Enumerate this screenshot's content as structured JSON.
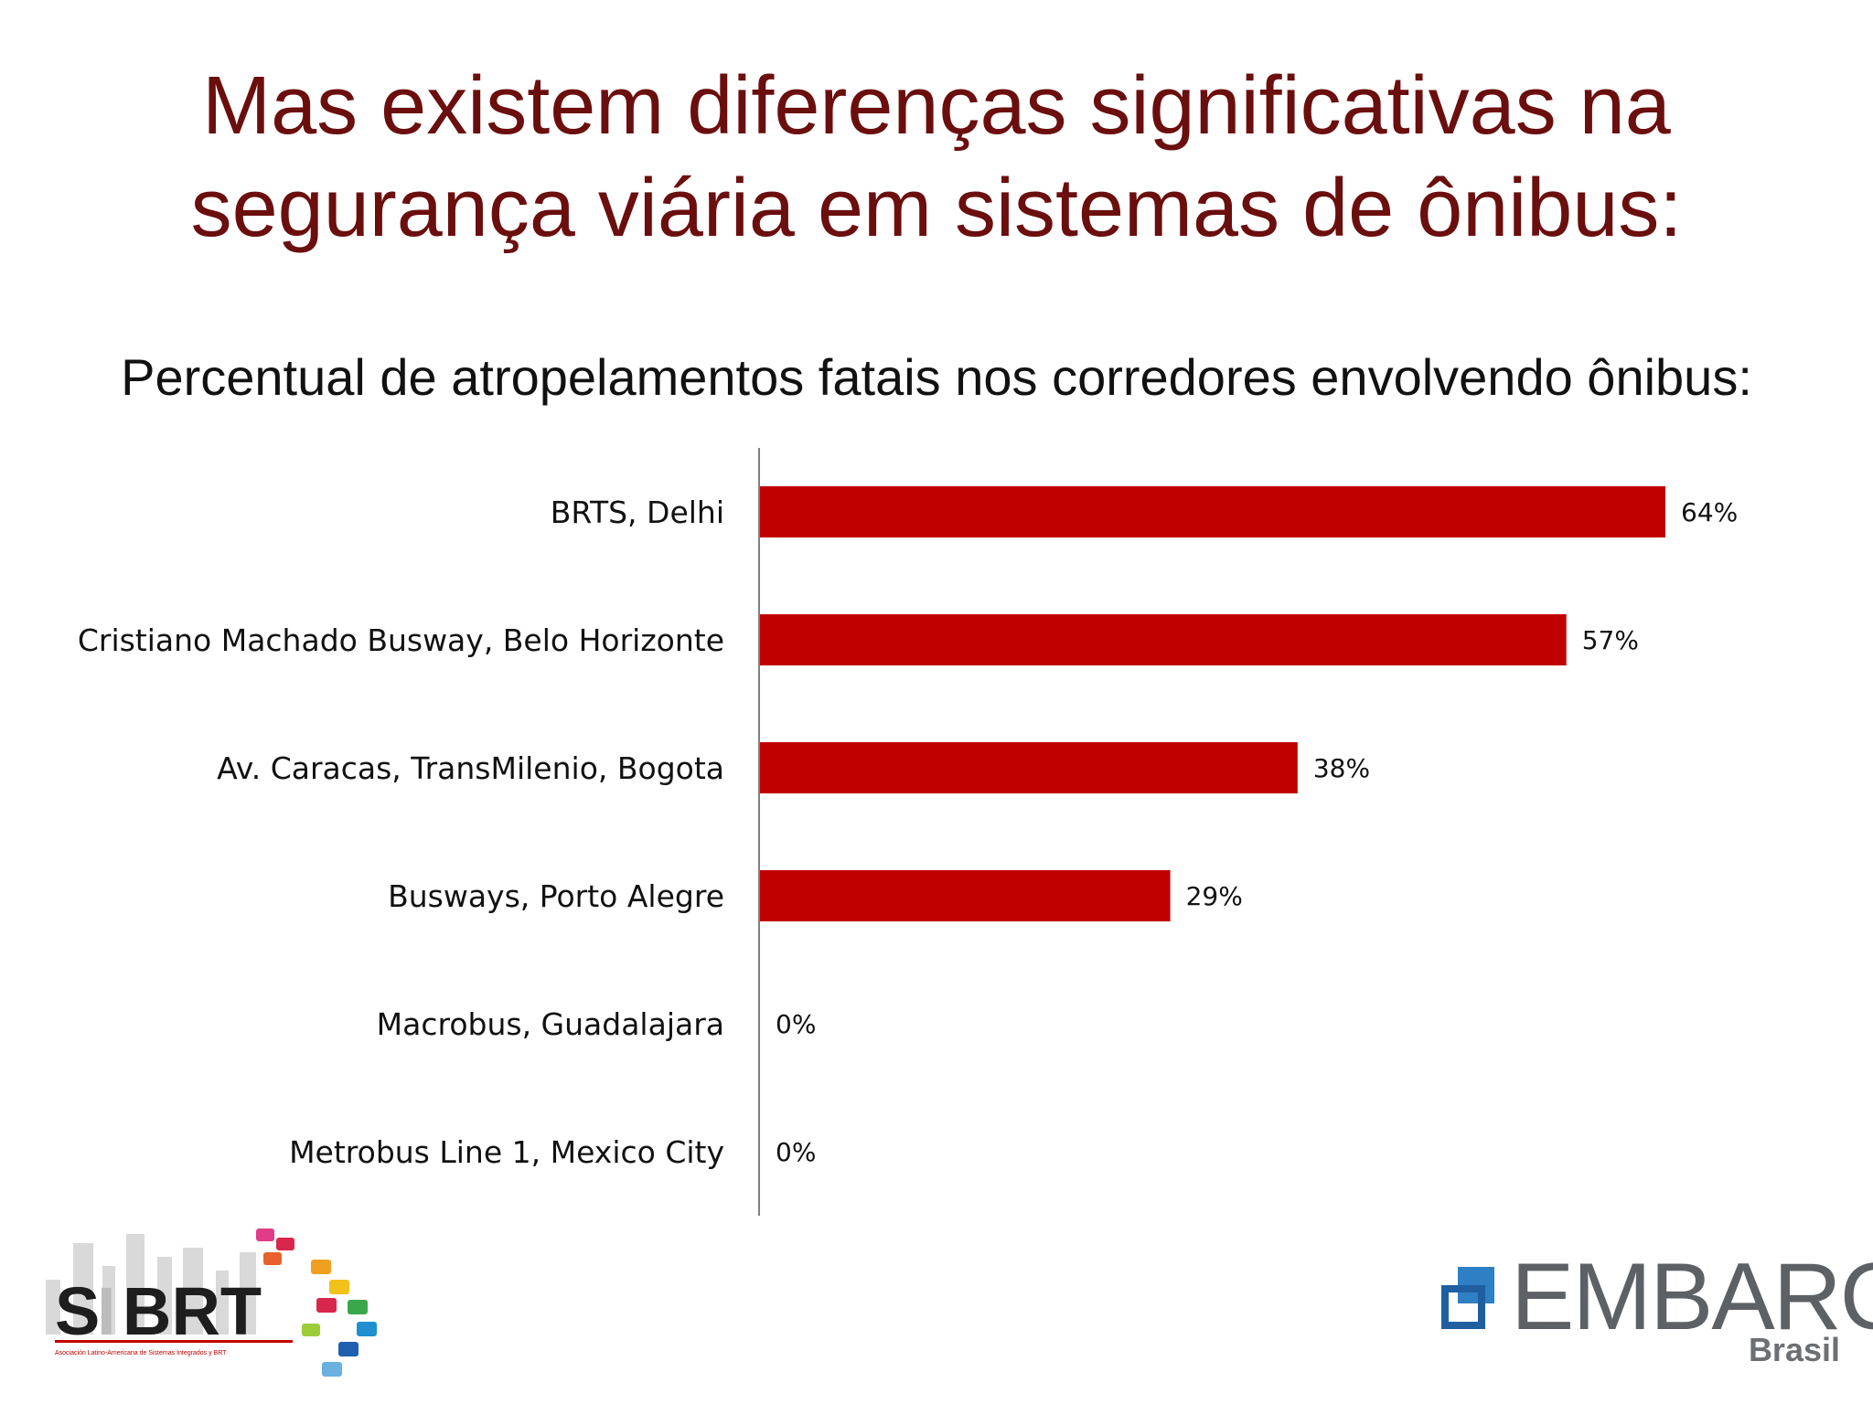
{
  "slide": {
    "title_line1": "Mas existem diferenças significativas na",
    "title_line2": "segurança viária em sistemas de ônibus:",
    "subtitle": "Percentual de atropelamentos fatais nos corredores envolvendo ônibus:"
  },
  "colors": {
    "bar": "#c00000",
    "title": "#6b0e0e",
    "axis": "#808080"
  },
  "chart_data": {
    "type": "bar",
    "orientation": "horizontal",
    "title": "",
    "xlabel": "",
    "ylabel": "",
    "xlim": [
      0,
      64
    ],
    "grid": false,
    "categories": [
      "BRTS, Delhi",
      "Cristiano Machado Busway, Belo Horizonte",
      "Av. Caracas, TransMilenio, Bogota",
      "Busways, Porto Alegre",
      "Macrobus, Guadalajara",
      "Metrobus Line 1, Mexico City"
    ],
    "values": [
      64,
      57,
      38,
      29,
      0,
      0
    ],
    "data_labels": [
      "64%",
      "57%",
      "38%",
      "29%",
      "0%",
      "0%"
    ]
  },
  "logos": {
    "sibrt": {
      "name": "SIBRT",
      "tagline": "Asociación Latino-Americana de Sistemas Integrados y BRT"
    },
    "embarq": {
      "name": "EMBARQ",
      "sub": "Brasil"
    }
  }
}
